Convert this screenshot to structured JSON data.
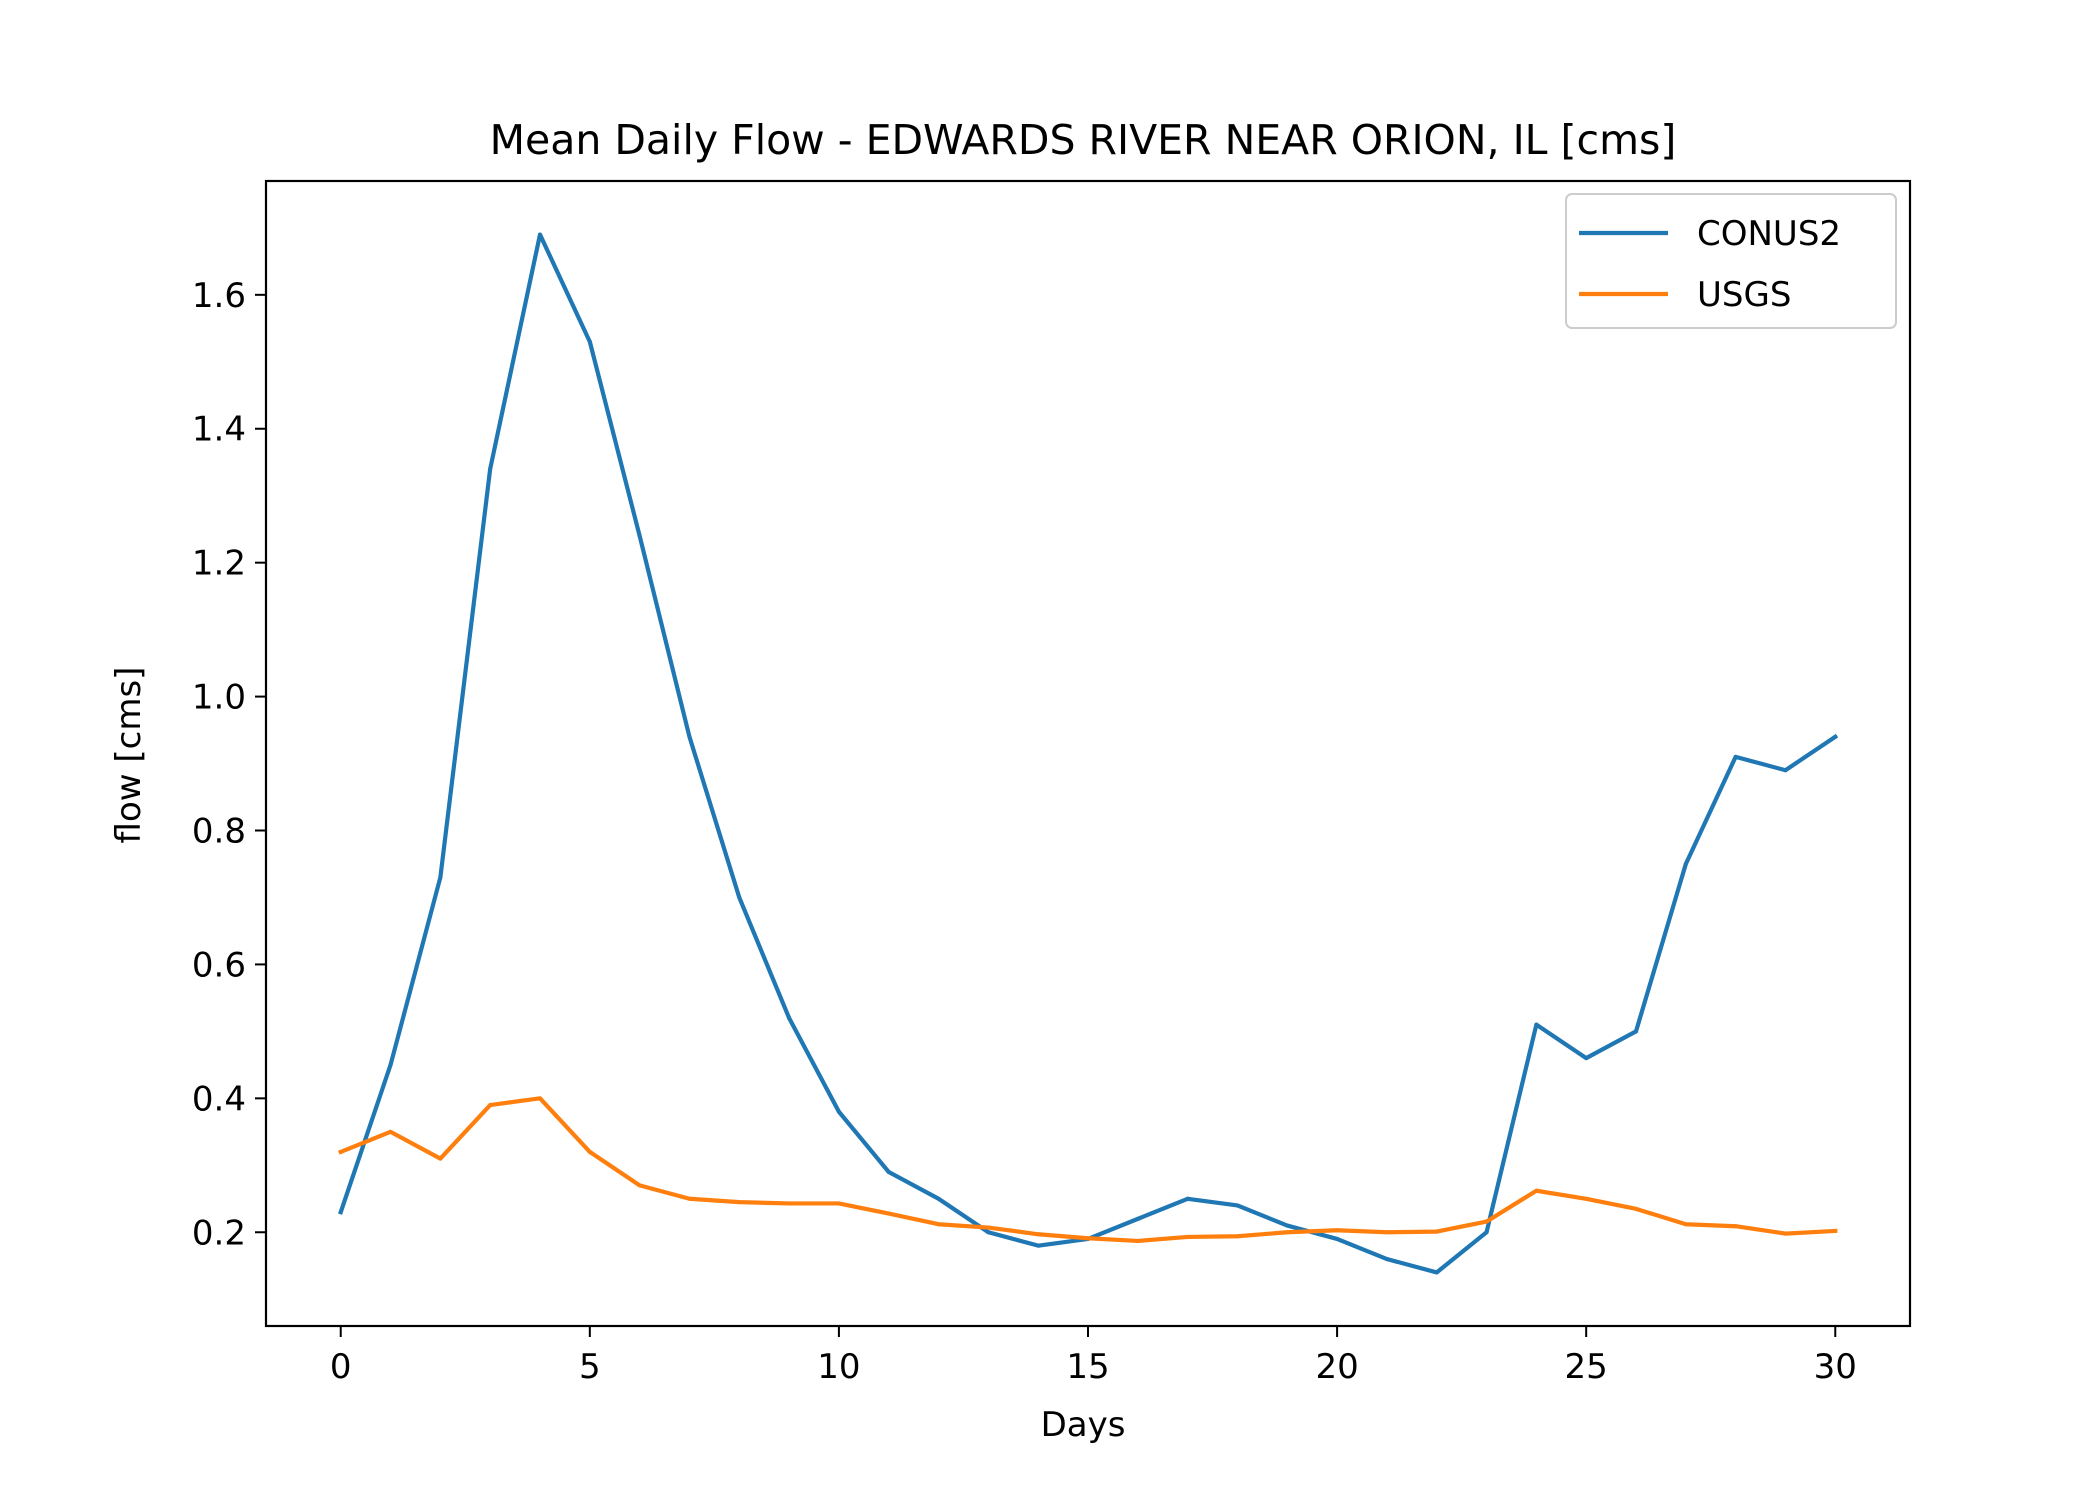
{
  "chart_data": {
    "type": "line",
    "title": "Mean Daily Flow - EDWARDS RIVER NEAR ORION, IL [cms]",
    "xlabel": "Days",
    "ylabel": "flow [cms]",
    "xlim": [
      -1.5,
      31.5
    ],
    "ylim": [
      0.06,
      1.77
    ],
    "x_ticks": [
      0,
      5,
      10,
      15,
      20,
      25,
      30
    ],
    "x_tick_labels": [
      "0",
      "5",
      "10",
      "15",
      "20",
      "25",
      "30"
    ],
    "y_ticks": [
      0.2,
      0.4,
      0.6,
      0.8,
      1.0,
      1.2,
      1.4,
      1.6
    ],
    "y_tick_labels": [
      "0.2",
      "0.4",
      "0.6",
      "0.8",
      "1.0",
      "1.2",
      "1.4",
      "1.6"
    ],
    "grid": false,
    "legend_position": "top-right",
    "x": [
      0,
      1,
      2,
      3,
      4,
      5,
      6,
      7,
      8,
      9,
      10,
      11,
      12,
      13,
      14,
      15,
      16,
      17,
      18,
      19,
      20,
      21,
      22,
      23,
      24,
      25,
      26,
      27,
      28,
      29,
      30
    ],
    "series": [
      {
        "name": "CONUS2",
        "color": "#1f77b4",
        "values": [
          0.23,
          0.45,
          0.73,
          1.34,
          1.69,
          1.53,
          1.24,
          0.94,
          0.7,
          0.52,
          0.38,
          0.29,
          0.25,
          0.2,
          0.18,
          0.19,
          0.22,
          0.25,
          0.24,
          0.21,
          0.19,
          0.16,
          0.14,
          0.2,
          0.51,
          0.46,
          0.5,
          0.75,
          0.91,
          0.89,
          0.94
        ]
      },
      {
        "name": "USGS",
        "color": "#ff7f0e",
        "values": [
          0.32,
          0.35,
          0.31,
          0.39,
          0.4,
          0.32,
          0.27,
          0.25,
          0.245,
          0.243,
          0.243,
          0.228,
          0.212,
          0.207,
          0.197,
          0.191,
          0.187,
          0.193,
          0.194,
          0.2,
          0.203,
          0.2,
          0.201,
          0.216,
          0.262,
          0.25,
          0.235,
          0.212,
          0.209,
          0.198,
          0.202
        ]
      }
    ]
  }
}
